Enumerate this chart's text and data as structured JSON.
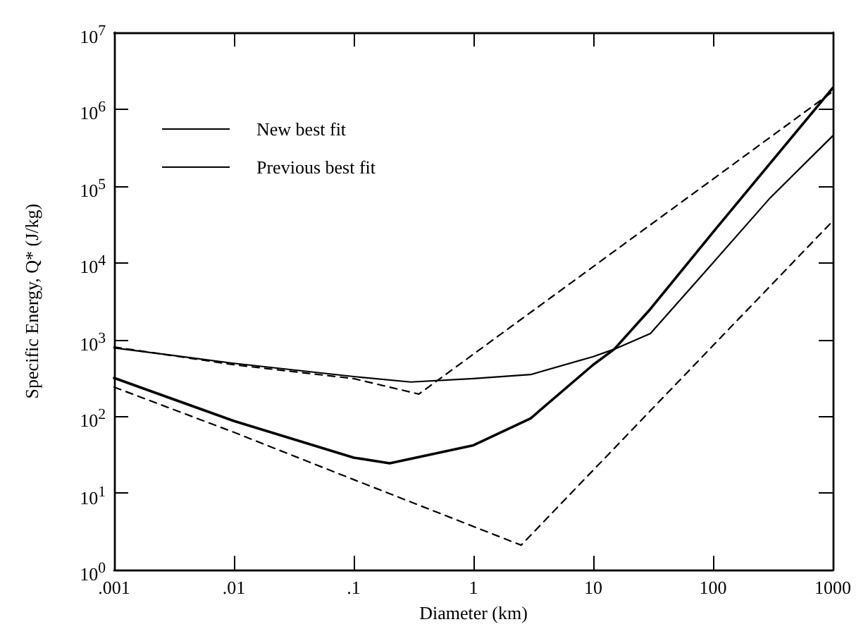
{
  "chart_data": {
    "type": "line",
    "xlabel": "Diameter (km)",
    "ylabel": "Specific Energy, Q* (J/kg)",
    "log": "xy",
    "xlim": [
      0.001,
      1000
    ],
    "ylim": [
      1,
      10000000
    ],
    "xticks": [
      {
        "value": 0.001,
        "label": ".001"
      },
      {
        "value": 0.01,
        "label": ".01"
      },
      {
        "value": 0.1,
        "label": ".1"
      },
      {
        "value": 1,
        "label": "1"
      },
      {
        "value": 10,
        "label": "10"
      },
      {
        "value": 100,
        "label": "100"
      },
      {
        "value": 1000,
        "label": "1000"
      }
    ],
    "yticks": [
      {
        "value": 1,
        "label": "10$^{0}$"
      },
      {
        "value": 10,
        "label": "10$^{1}$"
      },
      {
        "value": 100,
        "label": "10$^{2}$"
      },
      {
        "value": 1000,
        "label": "10$^{3}$"
      },
      {
        "value": 10000,
        "label": "10$^{4}$"
      },
      {
        "value": 100000,
        "label": "10$^{5}$"
      },
      {
        "value": 1000000,
        "label": "10$^{6}$"
      },
      {
        "value": 10000000,
        "label": "10$^{7}$"
      }
    ],
    "grid": false,
    "legend": "top left",
    "marker": "none",
    "series": [
      {
        "name": "New best fit",
        "color": "#000000",
        "line_style": "solid",
        "x": [
          0.001,
          0.01,
          0.1,
          0.2,
          1,
          3,
          10,
          15,
          30,
          100,
          1000
        ],
        "values": [
          316,
          87,
          29,
          24.5,
          42,
          94,
          470,
          750,
          2500,
          25000,
          1900000
        ]
      },
      {
        "name": "Previous best fit",
        "color": "#000000",
        "line_style": "solid",
        "x": [
          0.001,
          0.01,
          0.1,
          0.3,
          1,
          3,
          10,
          15,
          30,
          100,
          300,
          1000
        ],
        "values": [
          780,
          490,
          330,
          280,
          310,
          350,
          600,
          750,
          1200,
          10000,
          70000,
          450000
        ]
      },
      {
        "color": "#000000",
        "line_style": "dashed",
        "x": [
          0.001,
          0.01,
          0.1,
          0.35,
          1000
        ],
        "values": [
          800,
          470,
          310,
          195,
          1700000
        ]
      },
      {
        "color": "#000000",
        "line_style": "dashed",
        "x": [
          0.001,
          0.01,
          0.1,
          2.5,
          1000
        ],
        "values": [
          240,
          62,
          15,
          2.1,
          35000
        ]
      }
    ]
  }
}
